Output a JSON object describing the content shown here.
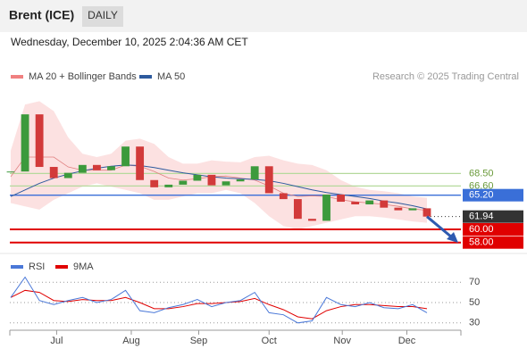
{
  "header": {
    "title": "Brent (ICE)",
    "period": "DAILY",
    "date": "Wednesday, December 10, 2025 2:04:36 AM CET"
  },
  "chart_data": [
    {
      "type": "candlestick",
      "legend": [
        {
          "name": "MA 20 + Bollinger Bands",
          "color": "#f08080"
        },
        {
          "name": "MA 50",
          "color": "#2e5a9e"
        }
      ],
      "credit": "Research © 2025 Trading Central",
      "closes": [
        68.8,
        77.5,
        69.5,
        67.8,
        68.6,
        69.8,
        69.0,
        69.6,
        72.6,
        67.5,
        66.4,
        66.8,
        67.4,
        68.3,
        66.7,
        67.3,
        67.6,
        69.6,
        65.5,
        64.6,
        61.6,
        61.3,
        65.3,
        64.2,
        63.8,
        64.4,
        63.3,
        62.9,
        63.2,
        61.94
      ],
      "ma20": [
        68,
        71,
        71,
        71,
        69.5,
        69,
        69,
        69,
        69.8,
        69.6,
        68.8,
        67.8,
        67.5,
        67.7,
        68,
        68.1,
        67.8,
        67.5,
        66.6,
        65.5,
        65,
        65.1,
        65,
        64.5,
        64.2,
        64,
        63.8,
        63.5,
        63.1,
        62.9
      ],
      "ma50": [
        65.0,
        66.0,
        67.0,
        67.8,
        68.4,
        68.9,
        69.3,
        69.6,
        69.8,
        69.7,
        69.4,
        69.0,
        68.6,
        68.3,
        68.0,
        67.8,
        67.7,
        67.6,
        67.4,
        67.0,
        66.5,
        66.0,
        65.6,
        65.3,
        65.0,
        64.7,
        64.3,
        64.0,
        63.6,
        63.1
      ],
      "bb_upper": [
        72,
        79,
        79.5,
        78,
        74,
        71.5,
        71,
        71.5,
        73.5,
        73.8,
        73,
        71,
        70,
        70,
        70.5,
        70.3,
        70.2,
        71,
        71.2,
        70.5,
        70,
        69.8,
        69,
        67.5,
        66.5,
        66,
        65.8,
        65.5,
        65,
        64.8
      ],
      "bb_lower": [
        64,
        63.5,
        63,
        64.5,
        65.5,
        66.5,
        67,
        66.5,
        66,
        65.5,
        64.5,
        64.5,
        65,
        65.5,
        65.5,
        66,
        65.5,
        64,
        62,
        60.5,
        60,
        60.5,
        61,
        61.5,
        62,
        62,
        61.8,
        61.5,
        61.2,
        61
      ],
      "levels": [
        {
          "value": 68.5,
          "label": "68.50",
          "color": "#b5d99c"
        },
        {
          "value": 66.6,
          "label": "66.60",
          "color": "#b5d99c"
        },
        {
          "value": 65.2,
          "label": "65.20",
          "color": "#3a6fd8"
        },
        {
          "value": 61.94,
          "label": "61.94",
          "color": "#333333"
        },
        {
          "value": 60,
          "label": "60.00",
          "color": "#e00000"
        },
        {
          "value": 58,
          "label": "58.00",
          "color": "#e00000"
        }
      ],
      "xlim": [
        0,
        29
      ],
      "xticks": [
        {
          "value": 3.2,
          "label": "Jul"
        },
        {
          "value": 8.4,
          "label": "Aug"
        },
        {
          "value": 13.1,
          "label": "Sep"
        },
        {
          "value": 18,
          "label": "Oct"
        },
        {
          "value": 23.1,
          "label": "Nov"
        },
        {
          "value": 27.6,
          "label": "Dec"
        }
      ],
      "ylim": [
        56.6,
        82
      ]
    },
    {
      "type": "line",
      "series": [
        {
          "name": "RSI",
          "color": "#4a78d8",
          "values": [
            55,
            75,
            52,
            48,
            52,
            55,
            50,
            53,
            62,
            42,
            40,
            45,
            48,
            53,
            46,
            50,
            52,
            60,
            40,
            38,
            30,
            32,
            55,
            48,
            46,
            50,
            45,
            44,
            48,
            40
          ]
        },
        {
          "name": "9MA",
          "color": "#e00000",
          "values": [
            55,
            62,
            60,
            52,
            51,
            53,
            52,
            52,
            55,
            50,
            44,
            44,
            46,
            49,
            49,
            50,
            51,
            54,
            48,
            43,
            36,
            34,
            42,
            46,
            48,
            48,
            47,
            46,
            46,
            44
          ]
        }
      ],
      "xlim": [
        0,
        29
      ],
      "ylim": [
        22.8,
        77.2
      ],
      "yticks": [
        70,
        50,
        30
      ]
    }
  ]
}
